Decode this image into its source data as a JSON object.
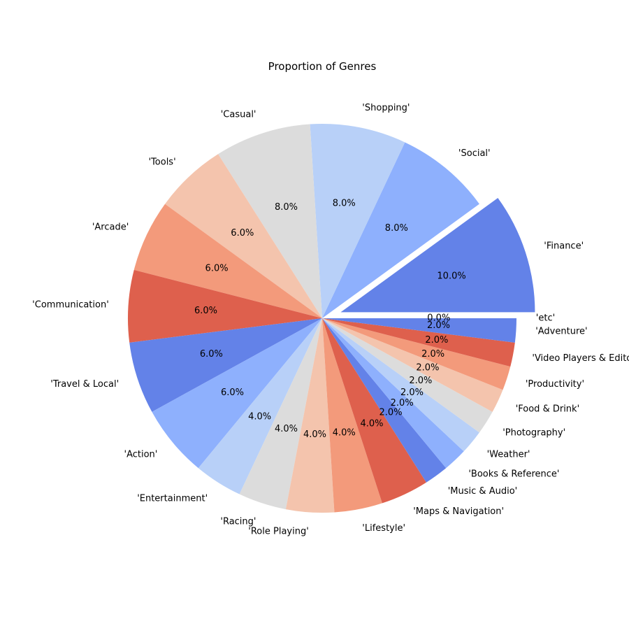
{
  "chart_data": {
    "type": "pie",
    "title": "Proportion of Genres",
    "start_angle_deg": 0,
    "counterclockwise": true,
    "slices": [
      {
        "label": "'Finance'",
        "value": 10.0,
        "pct_label": "10.0%",
        "color": "#6382e8",
        "explode": true
      },
      {
        "label": "'Social'",
        "value": 8.0,
        "pct_label": "8.0%",
        "color": "#8eb0fd"
      },
      {
        "label": "'Shopping'",
        "value": 8.0,
        "pct_label": "8.0%",
        "color": "#b8d0f8"
      },
      {
        "label": "'Casual'",
        "value": 8.0,
        "pct_label": "8.0%",
        "color": "#dcdcdc"
      },
      {
        "label": "'Tools'",
        "value": 6.0,
        "pct_label": "6.0%",
        "color": "#f4c4ad"
      },
      {
        "label": "'Arcade'",
        "value": 6.0,
        "pct_label": "6.0%",
        "color": "#f39a7b"
      },
      {
        "label": "'Communication'",
        "value": 6.0,
        "pct_label": "6.0%",
        "color": "#de604d"
      },
      {
        "label": "'Travel & Local'",
        "value": 6.0,
        "pct_label": "6.0%",
        "color": "#6382e8"
      },
      {
        "label": "'Action'",
        "value": 6.0,
        "pct_label": "6.0%",
        "color": "#8eb0fd"
      },
      {
        "label": "'Entertainment'",
        "value": 4.0,
        "pct_label": "4.0%",
        "color": "#b8d0f8"
      },
      {
        "label": "'Racing'",
        "value": 4.0,
        "pct_label": "4.0%",
        "color": "#dcdcdc"
      },
      {
        "label": "'Role Playing'",
        "value": 4.0,
        "pct_label": "4.0%",
        "color": "#f4c4ad"
      },
      {
        "label": "'Lifestyle'",
        "value": 4.0,
        "pct_label": "4.0%",
        "color": "#f39a7b"
      },
      {
        "label": "'Maps & Navigation'",
        "value": 4.0,
        "pct_label": "4.0%",
        "color": "#de604d"
      },
      {
        "label": "'Music & Audio'",
        "value": 2.0,
        "pct_label": "2.0%",
        "color": "#6382e8"
      },
      {
        "label": "'Books & Reference'",
        "value": 2.0,
        "pct_label": "2.0%",
        "color": "#8eb0fd"
      },
      {
        "label": "'Weather'",
        "value": 2.0,
        "pct_label": "2.0%",
        "color": "#b8d0f8"
      },
      {
        "label": "'Photography'",
        "value": 2.0,
        "pct_label": "2.0%",
        "color": "#dcdcdc"
      },
      {
        "label": "'Food & Drink'",
        "value": 2.0,
        "pct_label": "2.0%",
        "color": "#f4c4ad"
      },
      {
        "label": "'Productivity'",
        "value": 2.0,
        "pct_label": "2.0%",
        "color": "#f39a7b"
      },
      {
        "label": "'Video Players & Editors'",
        "value": 2.0,
        "pct_label": "2.0%",
        "color": "#de604d"
      },
      {
        "label": "'Adventure'",
        "value": 2.0,
        "pct_label": "2.0%",
        "color": "#6382e8"
      },
      {
        "label": "'etc'",
        "value": 0.0,
        "pct_label": "0.0%",
        "color": "#8eb0fd"
      }
    ]
  }
}
